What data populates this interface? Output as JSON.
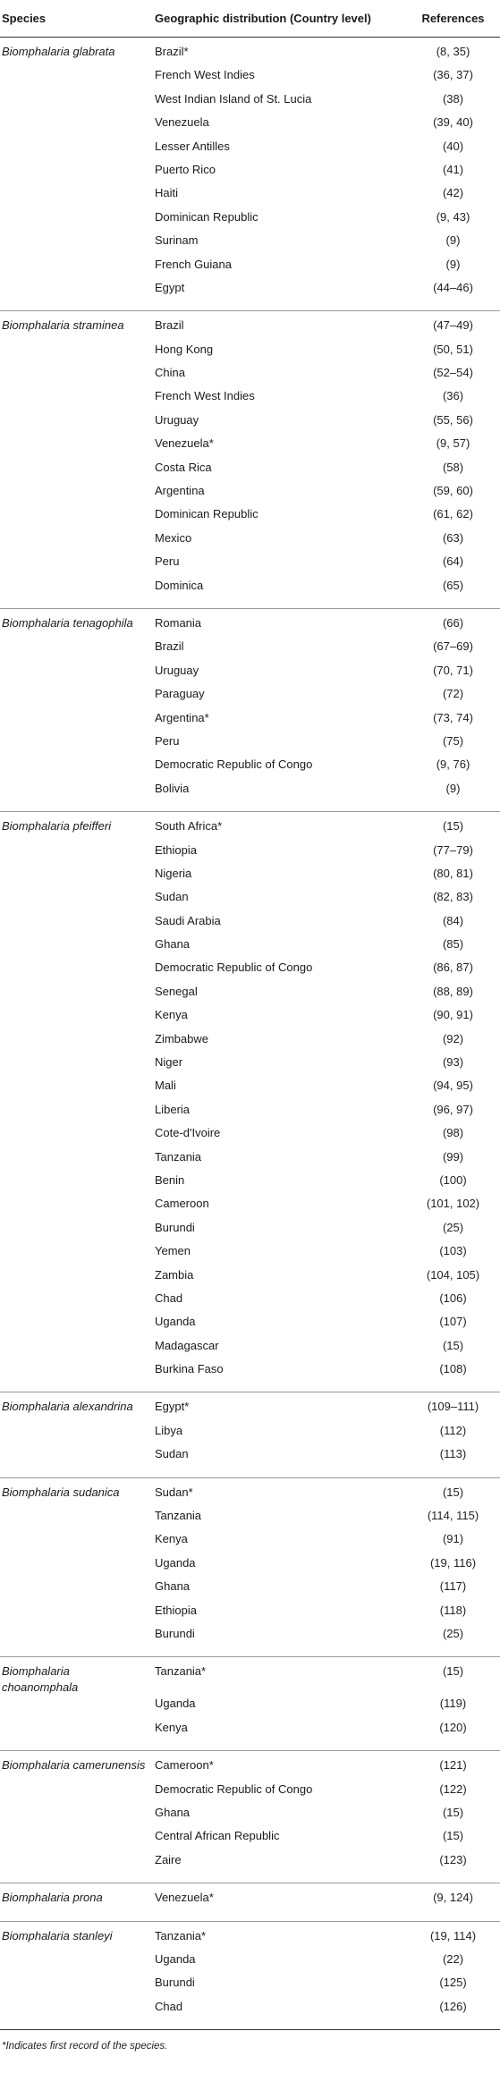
{
  "table": {
    "headers": {
      "species": "Species",
      "distribution": "Geographic distribution (Country level)",
      "references": "References"
    },
    "groups": [
      {
        "species": "Biomphalaria glabrata",
        "rows": [
          {
            "country": "Brazil*",
            "ref": "(8, 35)"
          },
          {
            "country": "French West Indies",
            "ref": "(36, 37)"
          },
          {
            "country": "West Indian Island of St. Lucia",
            "ref": "(38)"
          },
          {
            "country": "Venezuela",
            "ref": "(39, 40)"
          },
          {
            "country": "Lesser Antilles",
            "ref": "(40)"
          },
          {
            "country": "Puerto Rico",
            "ref": "(41)"
          },
          {
            "country": "Haiti",
            "ref": "(42)"
          },
          {
            "country": "Dominican Republic",
            "ref": "(9, 43)"
          },
          {
            "country": "Surinam",
            "ref": "(9)"
          },
          {
            "country": "French Guiana",
            "ref": "(9)"
          },
          {
            "country": "Egypt",
            "ref": "(44–46)"
          }
        ]
      },
      {
        "species": "Biomphalaria straminea",
        "rows": [
          {
            "country": "Brazil",
            "ref": "(47–49)"
          },
          {
            "country": "Hong Kong",
            "ref": "(50, 51)"
          },
          {
            "country": "China",
            "ref": "(52–54)"
          },
          {
            "country": "French West Indies",
            "ref": "(36)"
          },
          {
            "country": "Uruguay",
            "ref": "(55, 56)"
          },
          {
            "country": "Venezuela*",
            "ref": "(9, 57)"
          },
          {
            "country": "Costa Rica",
            "ref": "(58)"
          },
          {
            "country": "Argentina",
            "ref": "(59, 60)"
          },
          {
            "country": "Dominican Republic",
            "ref": "(61, 62)"
          },
          {
            "country": "Mexico",
            "ref": "(63)"
          },
          {
            "country": "Peru",
            "ref": "(64)"
          },
          {
            "country": "Dominica",
            "ref": "(65)"
          }
        ]
      },
      {
        "species": "Biomphalaria tenagophila",
        "rows": [
          {
            "country": "Romania",
            "ref": "(66)"
          },
          {
            "country": "Brazil",
            "ref": "(67–69)"
          },
          {
            "country": "Uruguay",
            "ref": "(70, 71)"
          },
          {
            "country": "Paraguay",
            "ref": "(72)"
          },
          {
            "country": "Argentina*",
            "ref": "(73, 74)"
          },
          {
            "country": "Peru",
            "ref": "(75)"
          },
          {
            "country": "Democratic Republic of Congo",
            "ref": "(9, 76)"
          },
          {
            "country": "Bolivia",
            "ref": "(9)"
          }
        ]
      },
      {
        "species": "Biomphalaria pfeifferi",
        "rows": [
          {
            "country": "South Africa*",
            "ref": "(15)"
          },
          {
            "country": "Ethiopia",
            "ref": "(77–79)"
          },
          {
            "country": "Nigeria",
            "ref": "(80, 81)"
          },
          {
            "country": "Sudan",
            "ref": "(82, 83)"
          },
          {
            "country": "Saudi Arabia",
            "ref": "(84)"
          },
          {
            "country": "Ghana",
            "ref": "(85)"
          },
          {
            "country": "Democratic Republic of Congo",
            "ref": "(86, 87)"
          },
          {
            "country": "Senegal",
            "ref": "(88, 89)"
          },
          {
            "country": "Kenya",
            "ref": "(90, 91)"
          },
          {
            "country": "Zimbabwe",
            "ref": "(92)"
          },
          {
            "country": "Niger",
            "ref": "(93)"
          },
          {
            "country": "Mali",
            "ref": "(94, 95)"
          },
          {
            "country": "Liberia",
            "ref": "(96, 97)"
          },
          {
            "country": "Cote-d'Ivoire",
            "ref": "(98)"
          },
          {
            "country": "Tanzania",
            "ref": "(99)"
          },
          {
            "country": "Benin",
            "ref": "(100)"
          },
          {
            "country": "Cameroon",
            "ref": "(101, 102)"
          },
          {
            "country": "Burundi",
            "ref": "(25)"
          },
          {
            "country": "Yemen",
            "ref": "(103)"
          },
          {
            "country": "Zambia",
            "ref": "(104, 105)"
          },
          {
            "country": "Chad",
            "ref": "(106)"
          },
          {
            "country": "Uganda",
            "ref": "(107)"
          },
          {
            "country": "Madagascar",
            "ref": "(15)"
          },
          {
            "country": "Burkina Faso",
            "ref": "(108)"
          }
        ]
      },
      {
        "species": "Biomphalaria alexandrina",
        "rows": [
          {
            "country": "Egypt*",
            "ref": "(109–111)"
          },
          {
            "country": "Libya",
            "ref": "(112)"
          },
          {
            "country": "Sudan",
            "ref": "(113)"
          }
        ]
      },
      {
        "species": "Biomphalaria sudanica",
        "rows": [
          {
            "country": "Sudan*",
            "ref": "(15)"
          },
          {
            "country": "Tanzania",
            "ref": "(114, 115)"
          },
          {
            "country": "Kenya",
            "ref": "(91)"
          },
          {
            "country": "Uganda",
            "ref": "(19, 116)"
          },
          {
            "country": "Ghana",
            "ref": "(117)"
          },
          {
            "country": "Ethiopia",
            "ref": "(118)"
          },
          {
            "country": "Burundi",
            "ref": "(25)"
          }
        ]
      },
      {
        "species": "Biomphalaria choanomphala",
        "rows": [
          {
            "country": "Tanzania*",
            "ref": "(15)"
          },
          {
            "country": "Uganda",
            "ref": "(119)"
          },
          {
            "country": "Kenya",
            "ref": "(120)"
          }
        ]
      },
      {
        "species": "Biomphalaria camerunensis",
        "rows": [
          {
            "country": "Cameroon*",
            "ref": "(121)"
          },
          {
            "country": "Democratic Republic of Congo",
            "ref": "(122)"
          },
          {
            "country": "Ghana",
            "ref": "(15)"
          },
          {
            "country": "Central African Republic",
            "ref": "(15)"
          },
          {
            "country": "Zaire",
            "ref": "(123)"
          }
        ]
      },
      {
        "species": "Biomphalaria prona",
        "rows": [
          {
            "country": "Venezuela*",
            "ref": "(9, 124)"
          }
        ]
      },
      {
        "species": "Biomphalaria stanleyi",
        "rows": [
          {
            "country": "Tanzania*",
            "ref": "(19, 114)"
          },
          {
            "country": "Uganda",
            "ref": "(22)"
          },
          {
            "country": "Burundi",
            "ref": "(125)"
          },
          {
            "country": "Chad",
            "ref": "(126)"
          }
        ]
      }
    ],
    "footnote": "*Indicates first record of the species."
  }
}
